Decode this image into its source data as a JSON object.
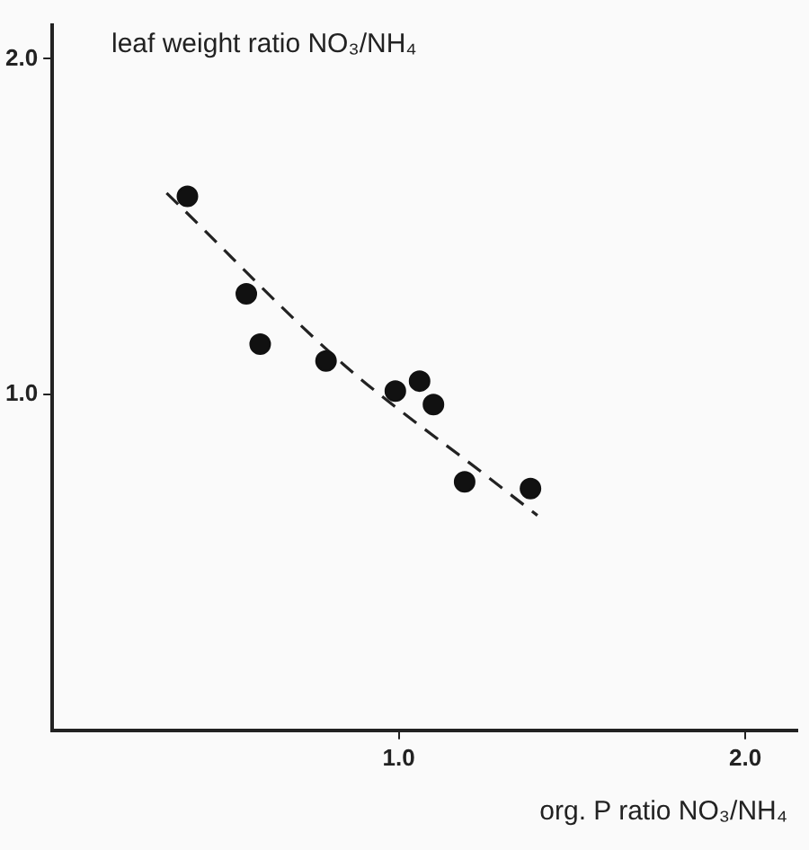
{
  "chart_data": {
    "type": "scatter",
    "xlabel": "org. P ratio NO₃/NH₄",
    "ylabel": "leaf weight ratio NO₃/NH₄",
    "xlim": [
      0,
      2.15
    ],
    "ylim": [
      0,
      2.1
    ],
    "xticks": [
      {
        "value": 1,
        "label": "1.0"
      },
      {
        "value": 2,
        "label": "2.0"
      }
    ],
    "yticks": [
      {
        "value": 1,
        "label": "1.0"
      },
      {
        "value": 2,
        "label": "2.0"
      }
    ],
    "grid": false,
    "series": [
      {
        "marker": "circle",
        "color": "#111111",
        "x": [
          0.39,
          0.56,
          0.6,
          0.79,
          0.99,
          1.06,
          1.1,
          1.19,
          1.38
        ],
        "values": [
          1.59,
          1.3,
          1.15,
          1.1,
          1.01,
          1.04,
          0.97,
          0.74,
          0.72
        ]
      },
      {
        "type": "line",
        "marker": "none",
        "color": "#222222",
        "line_style": "dashed",
        "x": [
          0.33,
          0.84,
          1.25,
          1.4
        ],
        "values": [
          1.6,
          1.09,
          0.76,
          0.64
        ]
      }
    ]
  }
}
